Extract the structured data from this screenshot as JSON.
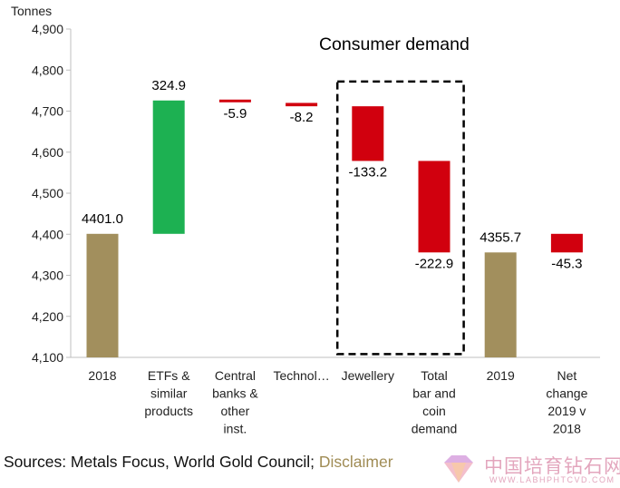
{
  "chart_data": {
    "type": "waterfall",
    "ylabel": "Tonnes",
    "ylim": [
      4100,
      4900
    ],
    "yticks": [
      4100,
      4200,
      4300,
      4400,
      4500,
      4600,
      4700,
      4800,
      4900
    ],
    "ytick_labels": [
      "4,100",
      "4,200",
      "4,300",
      "4,400",
      "4,500",
      "4,600",
      "4,700",
      "4,800",
      "4,900"
    ],
    "grid": false,
    "annotation": "Consumer demand",
    "colors": {
      "total": "#a28f5d",
      "increase": "#1db152",
      "decrease": "#d1000e",
      "axis": "#bfbfbf"
    },
    "bars": [
      {
        "category": [
          "2018"
        ],
        "kind": "total",
        "start": 4100,
        "end": 4401.0,
        "label": "4401.0"
      },
      {
        "category": [
          "ETFs &",
          "similar",
          "products"
        ],
        "kind": "increase",
        "start": 4401.0,
        "end": 4725.9,
        "label": "324.9"
      },
      {
        "category": [
          "Central",
          "banks &",
          "other",
          "inst."
        ],
        "kind": "decrease",
        "start": 4725.9,
        "end": 4720.0,
        "label": "-5.9"
      },
      {
        "category": [
          "Technol…"
        ],
        "kind": "decrease",
        "start": 4720.0,
        "end": 4711.8,
        "label": "-8.2"
      },
      {
        "category": [
          "Jewellery"
        ],
        "kind": "decrease",
        "start": 4711.8,
        "end": 4578.6,
        "label": "-133.2"
      },
      {
        "category": [
          "Total",
          "bar and",
          "coin",
          "demand"
        ],
        "kind": "decrease",
        "start": 4578.6,
        "end": 4355.7,
        "label": "-222.9"
      },
      {
        "category": [
          "2019"
        ],
        "kind": "total",
        "start": 4100,
        "end": 4355.7,
        "label": "4355.7"
      },
      {
        "category": [
          "Net",
          "change",
          "2019 v",
          "2018"
        ],
        "kind": "decrease",
        "start": 4401.0,
        "end": 4355.7,
        "label": "-45.3"
      }
    ]
  },
  "footer": {
    "sources": "Sources: Metals Focus, World Gold Council; ",
    "disclaimer": "Disclaimer"
  },
  "watermark": {
    "text": "中国培育钻石网",
    "url": "WWW.LABHPHTCVD.COM",
    "colors": [
      "#f2b8c6",
      "#d9a6e0",
      "#f7c9a8"
    ]
  }
}
